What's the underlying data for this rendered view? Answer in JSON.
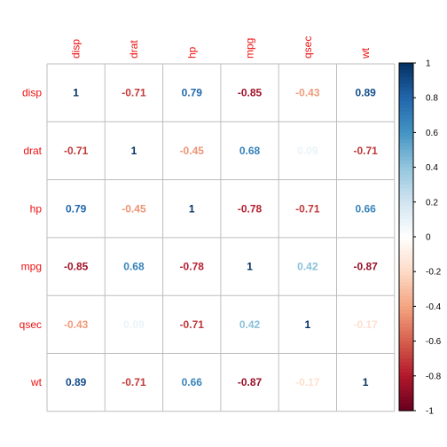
{
  "chart_data": {
    "type": "heatmap",
    "variables": [
      "disp",
      "drat",
      "hp",
      "mpg",
      "qsec",
      "wt"
    ],
    "matrix": [
      [
        1,
        -0.71,
        0.79,
        -0.85,
        -0.43,
        0.89
      ],
      [
        -0.71,
        1,
        -0.45,
        0.68,
        0.09,
        -0.71
      ],
      [
        0.79,
        -0.45,
        1,
        -0.78,
        -0.71,
        0.66
      ],
      [
        -0.85,
        0.68,
        -0.78,
        1,
        0.42,
        -0.87
      ],
      [
        -0.43,
        0.09,
        -0.71,
        0.42,
        1,
        -0.17
      ],
      [
        0.89,
        -0.71,
        0.66,
        -0.87,
        -0.17,
        1
      ]
    ],
    "labels": [
      [
        "1",
        "-0.71",
        "0.79",
        "-0.85",
        "-0.43",
        "0.89"
      ],
      [
        "-0.71",
        "1",
        "-0.45",
        "0.68",
        "0.09",
        "-0.71"
      ],
      [
        "0.79",
        "-0.45",
        "1",
        "-0.78",
        "-0.71",
        "0.66"
      ],
      [
        "-0.85",
        "0.68",
        "-0.78",
        "1",
        "0.42",
        "-0.87"
      ],
      [
        "-0.43",
        "0.09",
        "-0.71",
        "0.42",
        "1",
        "-0.17"
      ],
      [
        "0.89",
        "-0.71",
        "0.66",
        "-0.87",
        "-0.17",
        "1"
      ]
    ],
    "colorbar": {
      "range": [
        -1,
        1
      ],
      "ticks": [
        "-1",
        "-0.8",
        "-0.6",
        "-0.4",
        "-0.2",
        "0",
        "0.2",
        "0.4",
        "0.6",
        "0.8",
        "1"
      ]
    },
    "label_color": "#ee1111",
    "grid_color": "#bebebe",
    "colormap": [
      "#67001f",
      "#b2182b",
      "#d6604d",
      "#f4a582",
      "#fddbc7",
      "#ffffff",
      "#d1e5f0",
      "#92c5de",
      "#4393c3",
      "#2166ac",
      "#053061"
    ]
  }
}
